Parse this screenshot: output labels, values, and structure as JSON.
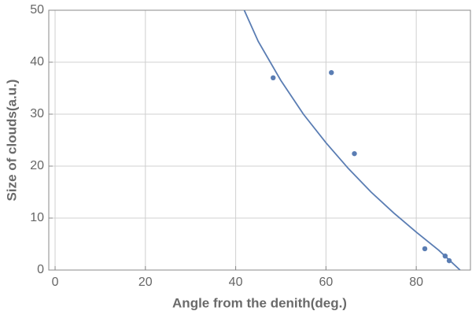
{
  "chart_data": {
    "type": "scatter",
    "x_label": "Angle from the denith(deg.)",
    "y_label": "Size of clouds(a.u.)",
    "xlim": [
      -1.4,
      92
    ],
    "ylim": [
      0,
      50
    ],
    "xticks": [
      0,
      20,
      40,
      60,
      80
    ],
    "yticks": [
      0,
      10,
      20,
      30,
      40,
      50
    ],
    "grid": true,
    "series": [
      {
        "type": "scatter",
        "color": "#5a7db3",
        "x": [
          48.3,
          61.2,
          66.3,
          81.9,
          86.4,
          87.3
        ],
        "values": [
          37.0,
          38.0,
          22.4,
          4.1,
          2.7,
          1.8
        ]
      },
      {
        "type": "line",
        "color": "#5a7db3",
        "x": [
          41.9,
          45,
          50,
          55,
          60,
          65,
          70,
          75,
          80,
          85,
          89.7
        ],
        "values": [
          50,
          44,
          36.5,
          30,
          24.5,
          19.5,
          15,
          11,
          7.3,
          3.8,
          0
        ]
      }
    ]
  }
}
